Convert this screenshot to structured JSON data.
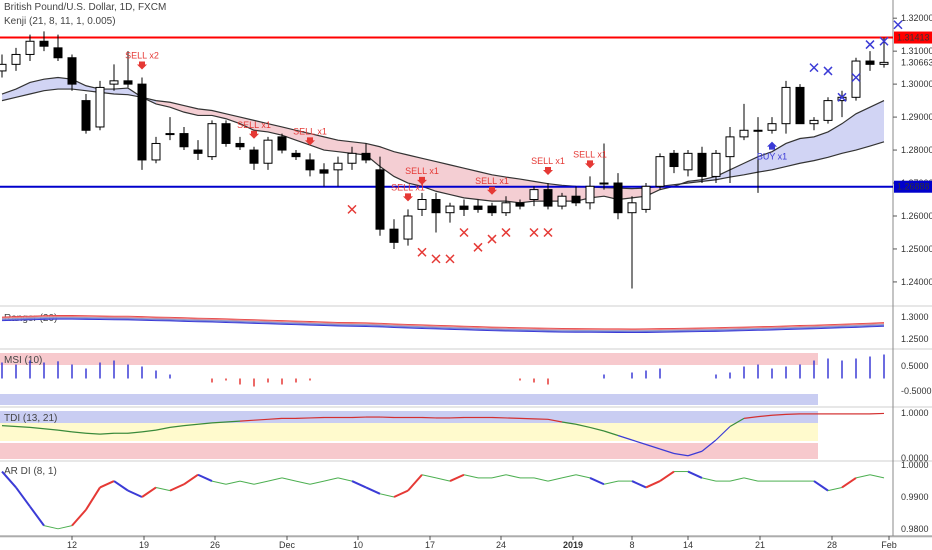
{
  "header": {
    "title": "British Pound/U.S. Dollar, 1D, FXCM",
    "indicator": "Kenji (21, 8, 11, 1, 0.005)"
  },
  "colors": {
    "up": "#ffffff",
    "down": "#000000",
    "sell": "#e53935",
    "buy": "#3b3bd6",
    "hline_red": "#ff0000",
    "hline_blue": "#0000cc",
    "band_upper": "#f2c6cb",
    "band_lower": "#c9cdf2"
  },
  "price_tags": {
    "red_level": "1.31413",
    "blue_level": "1.26888",
    "current": "1.30663"
  },
  "panes": {
    "ranger": "Ranger (20)",
    "msi": "MSI (10)",
    "tdi": "TDI (13, 21)",
    "ardi": "AR DI (8, 1)"
  },
  "chart_data": {
    "type": "candlestick",
    "price_axis_ticks": [
      "1.32000",
      "1.31000",
      "1.30000",
      "1.29000",
      "1.28000",
      "1.27000",
      "1.26000",
      "1.25000",
      "1.24000"
    ],
    "ranger_ticks": [
      "1.3000",
      "1.2500"
    ],
    "msi_ticks": [
      "0.5000",
      "-0.5000"
    ],
    "tdi_ticks": [
      "1.0000",
      "0.0000"
    ],
    "ardi_ticks": [
      "1.0000",
      "0.9900",
      "0.9800"
    ],
    "x_tick_labels": [
      "12",
      "19",
      "26",
      "Dec",
      "10",
      "17",
      "24",
      "2019",
      "8",
      "14",
      "21",
      "28",
      "Feb"
    ],
    "candles": [
      {
        "o": 1.304,
        "h": 1.309,
        "l": 1.302,
        "c": 1.306
      },
      {
        "o": 1.306,
        "h": 1.311,
        "l": 1.304,
        "c": 1.309
      },
      {
        "o": 1.309,
        "h": 1.315,
        "l": 1.307,
        "c": 1.313
      },
      {
        "o": 1.313,
        "h": 1.316,
        "l": 1.31,
        "c": 1.3115
      },
      {
        "o": 1.311,
        "h": 1.315,
        "l": 1.307,
        "c": 1.308
      },
      {
        "o": 1.308,
        "h": 1.309,
        "l": 1.298,
        "c": 1.3
      },
      {
        "o": 1.295,
        "h": 1.297,
        "l": 1.285,
        "c": 1.286
      },
      {
        "o": 1.287,
        "h": 1.301,
        "l": 1.286,
        "c": 1.299
      },
      {
        "o": 1.3,
        "h": 1.306,
        "l": 1.298,
        "c": 1.301
      },
      {
        "o": 1.301,
        "h": 1.31,
        "l": 1.299,
        "c": 1.3
      },
      {
        "o": 1.3,
        "h": 1.302,
        "l": 1.274,
        "c": 1.277
      },
      {
        "o": 1.277,
        "h": 1.284,
        "l": 1.276,
        "c": 1.282
      },
      {
        "o": 1.285,
        "h": 1.29,
        "l": 1.283,
        "c": 1.285
      },
      {
        "o": 1.285,
        "h": 1.287,
        "l": 1.28,
        "c": 1.281
      },
      {
        "o": 1.28,
        "h": 1.283,
        "l": 1.277,
        "c": 1.279
      },
      {
        "o": 1.278,
        "h": 1.289,
        "l": 1.277,
        "c": 1.288
      },
      {
        "o": 1.288,
        "h": 1.289,
        "l": 1.281,
        "c": 1.282
      },
      {
        "o": 1.282,
        "h": 1.284,
        "l": 1.28,
        "c": 1.281
      },
      {
        "o": 1.28,
        "h": 1.281,
        "l": 1.274,
        "c": 1.276
      },
      {
        "o": 1.276,
        "h": 1.284,
        "l": 1.274,
        "c": 1.283
      },
      {
        "o": 1.284,
        "h": 1.285,
        "l": 1.279,
        "c": 1.28
      },
      {
        "o": 1.279,
        "h": 1.28,
        "l": 1.277,
        "c": 1.278
      },
      {
        "o": 1.277,
        "h": 1.279,
        "l": 1.272,
        "c": 1.274
      },
      {
        "o": 1.274,
        "h": 1.276,
        "l": 1.269,
        "c": 1.273
      },
      {
        "o": 1.274,
        "h": 1.278,
        "l": 1.269,
        "c": 1.276
      },
      {
        "o": 1.276,
        "h": 1.281,
        "l": 1.274,
        "c": 1.279
      },
      {
        "o": 1.279,
        "h": 1.282,
        "l": 1.276,
        "c": 1.277
      },
      {
        "o": 1.274,
        "h": 1.278,
        "l": 1.254,
        "c": 1.256
      },
      {
        "o": 1.256,
        "h": 1.259,
        "l": 1.25,
        "c": 1.252
      },
      {
        "o": 1.253,
        "h": 1.262,
        "l": 1.251,
        "c": 1.26
      },
      {
        "o": 1.262,
        "h": 1.267,
        "l": 1.26,
        "c": 1.265
      },
      {
        "o": 1.265,
        "h": 1.267,
        "l": 1.255,
        "c": 1.261
      },
      {
        "o": 1.261,
        "h": 1.264,
        "l": 1.258,
        "c": 1.263
      },
      {
        "o": 1.263,
        "h": 1.265,
        "l": 1.26,
        "c": 1.262
      },
      {
        "o": 1.263,
        "h": 1.265,
        "l": 1.261,
        "c": 1.262
      },
      {
        "o": 1.263,
        "h": 1.264,
        "l": 1.26,
        "c": 1.261
      },
      {
        "o": 1.261,
        "h": 1.266,
        "l": 1.26,
        "c": 1.264
      },
      {
        "o": 1.264,
        "h": 1.265,
        "l": 1.262,
        "c": 1.263
      },
      {
        "o": 1.265,
        "h": 1.269,
        "l": 1.263,
        "c": 1.268
      },
      {
        "o": 1.268,
        "h": 1.27,
        "l": 1.262,
        "c": 1.263
      },
      {
        "o": 1.263,
        "h": 1.267,
        "l": 1.262,
        "c": 1.266
      },
      {
        "o": 1.266,
        "h": 1.269,
        "l": 1.263,
        "c": 1.264
      },
      {
        "o": 1.264,
        "h": 1.272,
        "l": 1.262,
        "c": 1.269
      },
      {
        "o": 1.27,
        "h": 1.282,
        "l": 1.268,
        "c": 1.27
      },
      {
        "o": 1.27,
        "h": 1.273,
        "l": 1.259,
        "c": 1.261
      },
      {
        "o": 1.261,
        "h": 1.266,
        "l": 1.238,
        "c": 1.264
      },
      {
        "o": 1.262,
        "h": 1.27,
        "l": 1.261,
        "c": 1.269
      },
      {
        "o": 1.269,
        "h": 1.279,
        "l": 1.268,
        "c": 1.278
      },
      {
        "o": 1.279,
        "h": 1.28,
        "l": 1.273,
        "c": 1.275
      },
      {
        "o": 1.274,
        "h": 1.28,
        "l": 1.272,
        "c": 1.279
      },
      {
        "o": 1.279,
        "h": 1.281,
        "l": 1.27,
        "c": 1.272
      },
      {
        "o": 1.272,
        "h": 1.28,
        "l": 1.27,
        "c": 1.279
      },
      {
        "o": 1.278,
        "h": 1.287,
        "l": 1.27,
        "c": 1.284
      },
      {
        "o": 1.284,
        "h": 1.294,
        "l": 1.283,
        "c": 1.286
      },
      {
        "o": 1.286,
        "h": 1.29,
        "l": 1.267,
        "c": 1.286
      },
      {
        "o": 1.286,
        "h": 1.29,
        "l": 1.285,
        "c": 1.288
      },
      {
        "o": 1.288,
        "h": 1.301,
        "l": 1.285,
        "c": 1.299
      },
      {
        "o": 1.299,
        "h": 1.3,
        "l": 1.288,
        "c": 1.288
      },
      {
        "o": 1.288,
        "h": 1.29,
        "l": 1.286,
        "c": 1.289
      },
      {
        "o": 1.289,
        "h": 1.296,
        "l": 1.288,
        "c": 1.295
      },
      {
        "o": 1.295,
        "h": 1.298,
        "l": 1.29,
        "c": 1.296
      },
      {
        "o": 1.296,
        "h": 1.308,
        "l": 1.295,
        "c": 1.307
      },
      {
        "o": 1.307,
        "h": 1.31,
        "l": 1.304,
        "c": 1.306
      },
      {
        "o": 1.306,
        "h": 1.3141,
        "l": 1.305,
        "c": 1.3066
      }
    ],
    "fast_line": [
      1.297,
      1.2985,
      1.3005,
      1.3015,
      1.302,
      1.3015,
      1.2995,
      1.2985,
      1.2985,
      1.2988,
      1.296,
      1.294,
      1.293,
      1.2915,
      1.2905,
      1.2905,
      1.2895,
      1.288,
      1.286,
      1.2855,
      1.2845,
      1.283,
      1.2815,
      1.28,
      1.2795,
      1.279,
      1.2785,
      1.275,
      1.272,
      1.27,
      1.269,
      1.2675,
      1.2665,
      1.2655,
      1.265,
      1.2645,
      1.2645,
      1.264,
      1.2645,
      1.2645,
      1.2645,
      1.2645,
      1.2655,
      1.266,
      1.265,
      1.2655,
      1.266,
      1.268,
      1.269,
      1.2705,
      1.271,
      1.272,
      1.274,
      1.276,
      1.278,
      1.2795,
      1.282,
      1.2835,
      1.284,
      1.2855,
      1.288,
      1.291,
      1.293,
      1.295
    ],
    "slow_line": [
      1.295,
      1.296,
      1.297,
      1.298,
      1.2985,
      1.2985,
      1.298,
      1.2975,
      1.297,
      1.2968,
      1.296,
      1.295,
      1.2945,
      1.2935,
      1.2925,
      1.292,
      1.291,
      1.29,
      1.289,
      1.288,
      1.287,
      1.286,
      1.285,
      1.284,
      1.283,
      1.2825,
      1.282,
      1.281,
      1.2795,
      1.2785,
      1.2775,
      1.2765,
      1.2755,
      1.2745,
      1.2735,
      1.2725,
      1.2718,
      1.2712,
      1.2705,
      1.2698,
      1.2693,
      1.269,
      1.2688,
      1.2686,
      1.2685,
      1.2683,
      1.2685,
      1.269,
      1.2695,
      1.27,
      1.2705,
      1.271,
      1.2718,
      1.2725,
      1.2733,
      1.274,
      1.275,
      1.276,
      1.2768,
      1.2778,
      1.279,
      1.28,
      1.2812,
      1.2825
    ],
    "sell_signals": [
      {
        "i": 10,
        "label": "SELL x2"
      },
      {
        "i": 18,
        "label": "SELL x1"
      },
      {
        "i": 22,
        "label": "SELL x1"
      },
      {
        "i": 29,
        "label": "SELL x1"
      },
      {
        "i": 30,
        "label": "SELL x1"
      },
      {
        "i": 35,
        "label": "SELL x1"
      },
      {
        "i": 39,
        "label": "SELL x1"
      },
      {
        "i": 42,
        "label": "SELL x1"
      }
    ],
    "buy_signals": [
      {
        "i": 55,
        "label": "BUY x1"
      }
    ],
    "sell_marks": [
      {
        "i": 25,
        "v": 1.262
      },
      {
        "i": 30,
        "v": 1.249
      },
      {
        "i": 31,
        "v": 1.247
      },
      {
        "i": 32,
        "v": 1.247
      },
      {
        "i": 33,
        "v": 1.255
      },
      {
        "i": 34,
        "v": 1.2505
      },
      {
        "i": 35,
        "v": 1.253
      },
      {
        "i": 36,
        "v": 1.255
      },
      {
        "i": 38,
        "v": 1.255
      },
      {
        "i": 39,
        "v": 1.255
      }
    ],
    "buy_marks": [
      {
        "i": 58,
        "v": 1.305
      },
      {
        "i": 59,
        "v": 1.304
      },
      {
        "i": 60,
        "v": 1.296
      },
      {
        "i": 61,
        "v": 1.302
      },
      {
        "i": 62,
        "v": 1.312
      },
      {
        "i": 63,
        "v": 1.313
      },
      {
        "i": 64,
        "v": 1.318
      }
    ],
    "msi_values": [
      0.35,
      0.3,
      0.4,
      0.35,
      0.38,
      0.3,
      0.2,
      0.35,
      0.4,
      0.3,
      0.25,
      0.15,
      0.05,
      0,
      -0.05,
      -0.15,
      -0.1,
      -0.2,
      -0.25,
      -0.15,
      -0.2,
      -0.15,
      -0.1,
      -0.05,
      0,
      0,
      0,
      0,
      0,
      0,
      0,
      0,
      0,
      0,
      0,
      0,
      0,
      -0.1,
      -0.15,
      -0.2,
      0,
      0,
      0,
      0.05,
      0,
      0.1,
      0.15,
      0.2,
      -0.05,
      0,
      0,
      0.05,
      0.1,
      0.25,
      0.3,
      0.2,
      0.25,
      0.3,
      0.4,
      0.45,
      0.4,
      0.45,
      0.5,
      0.55
    ],
    "tdi_values": [
      0.72,
      0.7,
      0.68,
      0.65,
      0.62,
      0.58,
      0.55,
      0.53,
      0.55,
      0.55,
      0.58,
      0.62,
      0.68,
      0.72,
      0.75,
      0.78,
      0.8,
      0.82,
      0.84,
      0.86,
      0.88,
      0.88,
      0.89,
      0.9,
      0.9,
      0.9,
      0.91,
      0.91,
      0.9,
      0.9,
      0.9,
      0.89,
      0.89,
      0.9,
      0.9,
      0.9,
      0.89,
      0.88,
      0.87,
      0.86,
      0.8,
      0.75,
      0.68,
      0.6,
      0.5,
      0.4,
      0.3,
      0.2,
      0.1,
      0.05,
      0.15,
      0.4,
      0.7,
      0.88,
      0.92,
      0.95,
      0.97,
      0.98,
      0.98,
      0.98,
      0.98,
      0.98,
      0.98,
      0.99
    ],
    "ardi_values": [
      0.998,
      0.993,
      0.987,
      0.981,
      0.98,
      0.981,
      0.986,
      0.993,
      0.995,
      0.992,
      0.99,
      0.993,
      0.992,
      0.994,
      0.997,
      0.995,
      0.994,
      0.995,
      0.994,
      0.995,
      0.996,
      0.995,
      0.994,
      0.995,
      0.996,
      0.995,
      0.993,
      0.991,
      0.99,
      0.992,
      0.997,
      0.996,
      0.995,
      0.997,
      0.996,
      0.996,
      0.997,
      0.996,
      0.996,
      0.995,
      0.996,
      0.997,
      0.996,
      0.994,
      0.995,
      0.995,
      0.993,
      0.995,
      0.998,
      0.998,
      0.996,
      0.995,
      0.995,
      0.996,
      0.995,
      0.995,
      0.995,
      0.995,
      0.995,
      0.992,
      0.993,
      0.996,
      0.997,
      0.996
    ]
  }
}
